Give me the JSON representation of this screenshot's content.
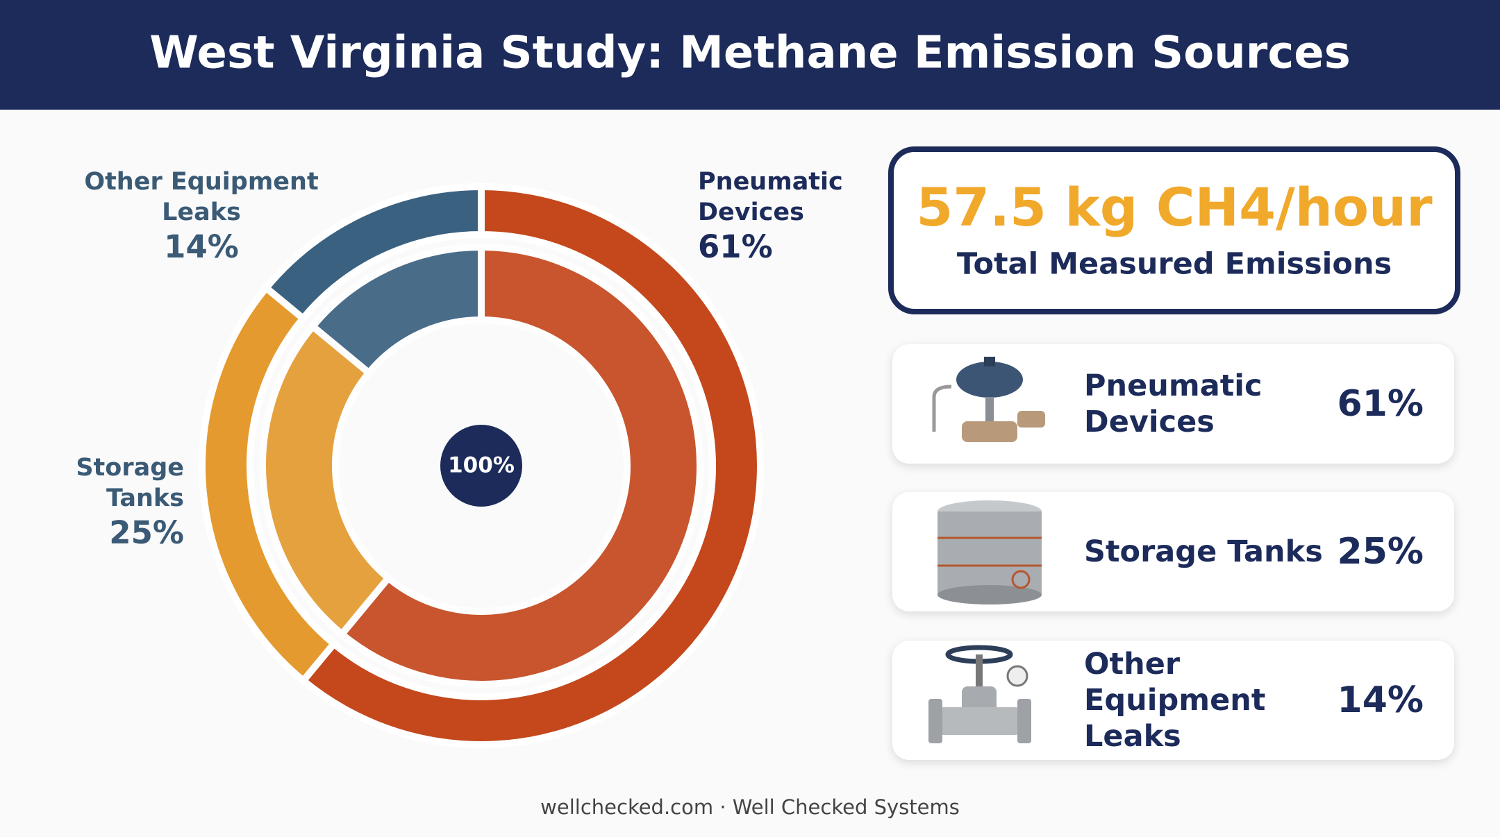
{
  "chart_data": {
    "type": "pie",
    "title": "West Virginia Study: Methane Emission Sources",
    "categories": [
      "Pneumatic Devices",
      "Storage Tanks",
      "Other Equipment Leaks"
    ],
    "values": [
      61,
      25,
      14
    ],
    "value_labels": [
      "61%",
      "25%",
      "14%"
    ],
    "colors": [
      "#c4481c",
      "#e49a2e",
      "#3b6180"
    ],
    "center_label": "100%",
    "total": "57.5 kg CH4/hour",
    "total_label": "Total Measured Emissions",
    "footer": "wellchecked.com · Well Checked Systems"
  }
}
